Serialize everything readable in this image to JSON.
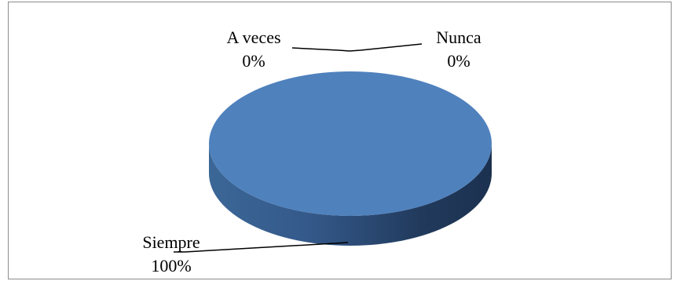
{
  "chart_data": {
    "type": "pie",
    "style": "3d",
    "title": "",
    "slices": [
      {
        "label": "Siempre",
        "value": 100,
        "percent_label": "100%",
        "color": "#4f81bd"
      },
      {
        "label": "A veces",
        "value": 0,
        "percent_label": "0%",
        "color": "#c0504d"
      },
      {
        "label": "Nunca",
        "value": 0,
        "percent_label": "0%",
        "color": "#9bbb59"
      }
    ],
    "legend": "none",
    "data_labels": "category-and-percent with leader lines"
  }
}
